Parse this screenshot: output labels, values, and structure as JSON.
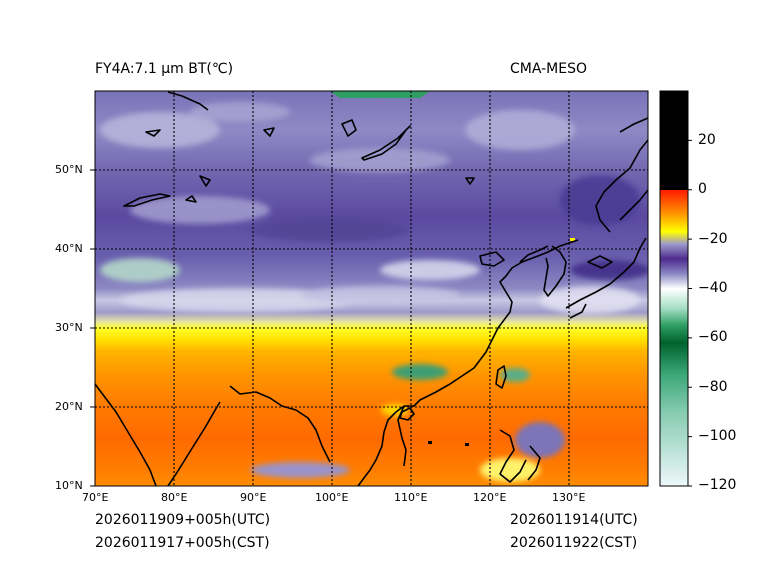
{
  "title_left": "FY4A:7.1 µm BT(℃)",
  "title_right": "CMA-MESO",
  "map": {
    "lat_ticks": [
      "50°N",
      "40°N",
      "30°N",
      "20°N",
      "10°N"
    ],
    "lon_ticks": [
      "70°E",
      "80°E",
      "90°E",
      "100°E",
      "110°E",
      "120°E",
      "130°E"
    ],
    "lat_extent": [
      10,
      60
    ],
    "lon_extent": [
      70,
      140
    ],
    "graticule": "dotted"
  },
  "colorbar": {
    "ticks": [
      "20",
      "0",
      "−20",
      "−40",
      "−60",
      "−80",
      "−100",
      "−120"
    ],
    "range": [
      -120,
      40
    ],
    "stops": [
      {
        "v": 40,
        "c": "#000000"
      },
      {
        "v": 0.01,
        "c": "#000000"
      },
      {
        "v": 0,
        "c": "#ff1a00"
      },
      {
        "v": -10,
        "c": "#ff9900"
      },
      {
        "v": -17,
        "c": "#ffff00"
      },
      {
        "v": -22,
        "c": "#9e99cc"
      },
      {
        "v": -28,
        "c": "#4e2c8f"
      },
      {
        "v": -34,
        "c": "#8a87c4"
      },
      {
        "v": -40,
        "c": "#ffffff"
      },
      {
        "v": -48,
        "c": "#a5dfc4"
      },
      {
        "v": -55,
        "c": "#2e9e63"
      },
      {
        "v": -62,
        "c": "#00632e"
      },
      {
        "v": -75,
        "c": "#3da878"
      },
      {
        "v": -90,
        "c": "#85cbb1"
      },
      {
        "v": -120,
        "c": "#eef8fa"
      }
    ]
  },
  "footer": {
    "left_utc": "2026011909+005h(UTC)",
    "left_cst": "2026011917+005h(CST)",
    "right_utc": "2026011914(UTC)",
    "right_cst": "2026011922(CST)"
  }
}
